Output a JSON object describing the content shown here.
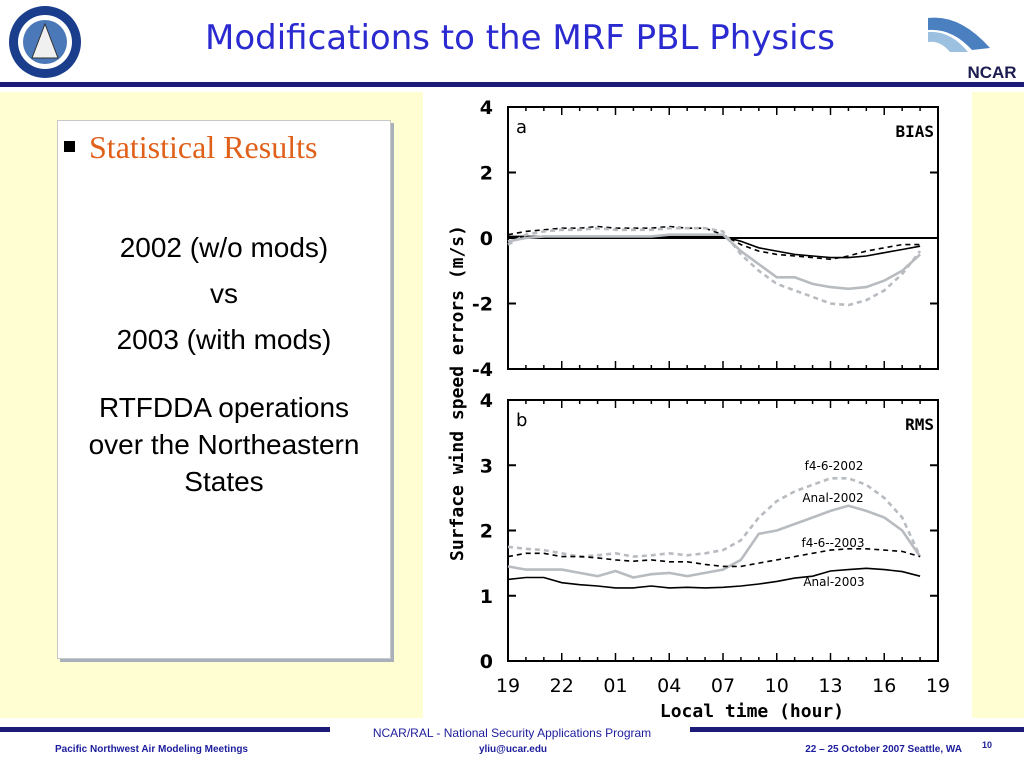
{
  "header": {
    "title": "Modifications to the MRF PBL Physics",
    "logo_text": "NCAR"
  },
  "content": {
    "bullet": "Statistical Results",
    "lines": [
      "2002 (w/o mods)",
      "vs",
      "2003 (with mods)"
    ],
    "paragraph": [
      "RTFDDA operations",
      "over the Northeastern",
      "States"
    ]
  },
  "figure": {
    "y_label": "Surface wind speed errors (m/s)",
    "x_label": "Local time (hour)"
  },
  "chart_data": [
    {
      "type": "line",
      "panel": "a",
      "annotation": "BIAS",
      "categories": [
        null,
        null,
        null,
        null,
        null,
        null,
        null,
        null,
        null,
        null,
        null,
        null,
        null,
        null,
        null,
        null,
        null,
        null,
        null,
        null,
        null,
        null,
        null,
        null,
        null
      ],
      "ylim": [
        -4,
        4
      ],
      "yticks": [
        -4,
        -2,
        0,
        2,
        4
      ],
      "zero_line": true,
      "series": [
        {
          "color": "#000000",
          "dashed": false,
          "values": [
            0.05,
            0.05,
            0.05,
            0.05,
            0.05,
            0.05,
            0.05,
            0.05,
            0.05,
            0.05,
            0.05,
            0.05,
            0.05,
            -0.1,
            -0.3,
            -0.4,
            -0.5,
            -0.55,
            -0.6,
            -0.6,
            -0.55,
            -0.45,
            -0.35,
            -0.25,
            null
          ]
        },
        {
          "color": "#000000",
          "dashed": true,
          "values": [
            0.1,
            0.2,
            0.25,
            0.3,
            0.3,
            0.35,
            0.3,
            0.3,
            0.3,
            0.35,
            0.3,
            0.3,
            0.1,
            -0.2,
            -0.4,
            -0.5,
            -0.55,
            -0.6,
            -0.65,
            -0.55,
            -0.4,
            -0.3,
            -0.2,
            -0.2,
            null
          ]
        },
        {
          "color": "#b8bcc0",
          "dashed": false,
          "values": [
            -0.1,
            0.0,
            0.05,
            0.05,
            0.05,
            0.05,
            0.05,
            0.05,
            0.05,
            0.1,
            0.1,
            0.1,
            0.1,
            -0.4,
            -0.8,
            -1.2,
            -1.2,
            -1.4,
            -1.5,
            -1.55,
            -1.5,
            -1.3,
            -1.0,
            -0.5,
            null
          ]
        },
        {
          "color": "#b8bcc0",
          "dashed": true,
          "values": [
            -0.2,
            0.1,
            0.2,
            0.25,
            0.25,
            0.3,
            0.25,
            0.25,
            0.25,
            0.3,
            0.3,
            0.3,
            0.2,
            -0.5,
            -1.0,
            -1.4,
            -1.6,
            -1.8,
            -2.0,
            -2.05,
            -1.9,
            -1.6,
            -1.1,
            -0.4,
            null
          ]
        }
      ]
    },
    {
      "type": "line",
      "panel": "b",
      "annotation": "RMS",
      "categories": [
        "19",
        null,
        null,
        "22",
        null,
        null,
        "01",
        null,
        null,
        "04",
        null,
        null,
        "07",
        null,
        null,
        "10",
        null,
        null,
        "13",
        null,
        null,
        "16",
        null,
        null,
        "19"
      ],
      "ylim": [
        0,
        4
      ],
      "yticks": [
        0,
        1,
        2,
        3,
        4
      ],
      "series": [
        {
          "name": "f4-6-2002",
          "color": "#b8bcc0",
          "dashed": true,
          "values": [
            1.75,
            1.72,
            1.7,
            1.65,
            1.6,
            1.62,
            1.65,
            1.6,
            1.62,
            1.65,
            1.62,
            1.65,
            1.7,
            1.85,
            2.2,
            2.45,
            2.6,
            2.7,
            2.8,
            2.8,
            2.7,
            2.5,
            2.2,
            1.6,
            null
          ]
        },
        {
          "name": "Anal-2002",
          "color": "#b8bcc0",
          "dashed": false,
          "values": [
            1.45,
            1.4,
            1.4,
            1.4,
            1.35,
            1.3,
            1.38,
            1.28,
            1.33,
            1.35,
            1.3,
            1.35,
            1.4,
            1.55,
            1.95,
            2.0,
            2.1,
            2.2,
            2.3,
            2.38,
            2.3,
            2.2,
            2.0,
            1.6,
            null
          ]
        },
        {
          "name": "f4-6--2003",
          "color": "#000000",
          "dashed": true,
          "values": [
            1.6,
            1.65,
            1.65,
            1.6,
            1.6,
            1.58,
            1.55,
            1.53,
            1.55,
            1.52,
            1.52,
            1.48,
            1.45,
            1.45,
            1.5,
            1.55,
            1.6,
            1.65,
            1.7,
            1.72,
            1.72,
            1.7,
            1.68,
            1.6,
            null
          ]
        },
        {
          "name": "Anal-2003",
          "color": "#000000",
          "dashed": false,
          "values": [
            1.25,
            1.28,
            1.28,
            1.2,
            1.17,
            1.15,
            1.12,
            1.12,
            1.15,
            1.12,
            1.13,
            1.12,
            1.13,
            1.15,
            1.18,
            1.22,
            1.27,
            1.3,
            1.38,
            1.4,
            1.42,
            1.4,
            1.37,
            1.3,
            null
          ]
        }
      ]
    }
  ],
  "footer": {
    "program": "NCAR/RAL - National Security Applications Program",
    "meeting": "Pacific Northwest Air Modeling Meetings",
    "email": "yliu@ucar.edu",
    "date_place": "22 – 25 October 2007  Seattle, WA",
    "page": "10"
  }
}
